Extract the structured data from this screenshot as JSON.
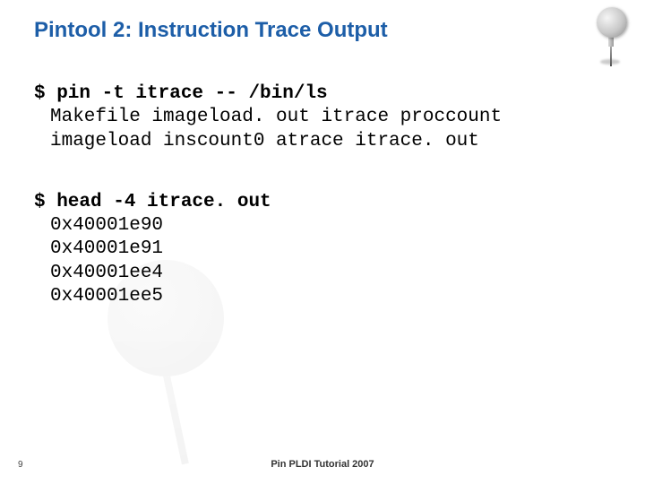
{
  "title": {
    "text": "Pintool 2: Instruction Trace Output",
    "color": "#1d5ea8",
    "fontsize": 24
  },
  "block1": {
    "cmd": "$ pin -t itrace -- /bin/ls",
    "lines": [
      "Makefile imageload. out itrace proccount",
      "imageload inscount0 atrace itrace. out"
    ]
  },
  "block2": {
    "cmd": "$ head -4 itrace. out",
    "lines": [
      "0x40001e90",
      "0x40001e91",
      "0x40001ee4",
      "0x40001ee5"
    ]
  },
  "mono_fontsize": 21,
  "footer": "Pin PLDI Tutorial 2007",
  "slidenum": "9",
  "background_color": "#ffffff"
}
